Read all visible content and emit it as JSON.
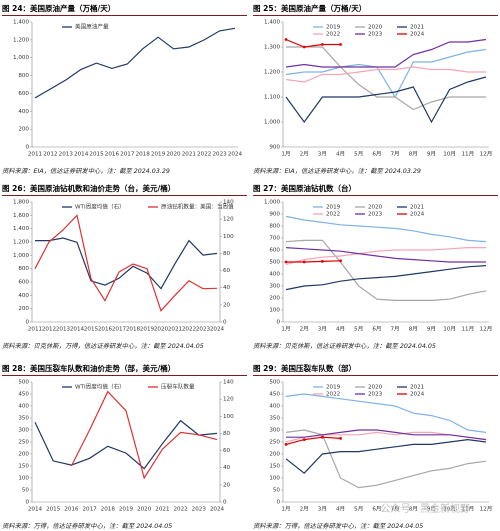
{
  "watermark": "公众号 · 黑金新视野",
  "chart_data": [
    {
      "type": "line",
      "title": "图 24：美国原油产量（万桶/天）",
      "source": "资料来源：EIA，信达证券研发中心，注：截至 2024.03.29",
      "categories": [
        "2011",
        "2012",
        "2013",
        "2014",
        "2015",
        "2016",
        "2017",
        "2018",
        "2019",
        "2020",
        "2021",
        "2022",
        "2023",
        "2024"
      ],
      "ylim": [
        0,
        1400
      ],
      "yticks": [
        0,
        200,
        400,
        600,
        800,
        {
          "value": 1000,
          "label": "1,000"
        },
        {
          "value": 1200,
          "label": "1,200"
        },
        {
          "value": 1400,
          "label": "1,400"
        }
      ],
      "series": [
        {
          "name": "美国原油产量",
          "color": "#1f3864",
          "values": [
            550,
            650,
            750,
            870,
            940,
            880,
            930,
            1100,
            1230,
            1100,
            1120,
            1200,
            1300,
            1330
          ]
        }
      ]
    },
    {
      "type": "line",
      "title": "图 25：美国原油产量（万桶/天）",
      "source": "资料来源：EIA，信达证券研发中心，注：截至 2024.03.29",
      "categories": [
        "1月",
        "2月",
        "3月",
        "4月",
        "5月",
        "6月",
        "7月",
        "8月",
        "9月",
        "10月",
        "11月",
        "12月"
      ],
      "ylim": [
        900,
        1400
      ],
      "yticks": [
        900,
        {
          "value": 1000,
          "label": "1,000"
        },
        {
          "value": 1100,
          "label": "1,100"
        },
        {
          "value": 1200,
          "label": "1,200"
        },
        {
          "value": 1300,
          "label": "1,300"
        },
        {
          "value": 1400,
          "label": "1,400"
        }
      ],
      "series": [
        {
          "name": "2019",
          "color": "#7fb2e5",
          "values": [
            1190,
            1200,
            1200,
            1220,
            1230,
            1220,
            1100,
            1240,
            1240,
            1260,
            1280,
            1290
          ]
        },
        {
          "name": "2020",
          "color": "#a6a6a6",
          "values": [
            1300,
            1300,
            1300,
            1220,
            1150,
            1100,
            1100,
            1050,
            1080,
            1100,
            1100,
            1100
          ]
        },
        {
          "name": "2021",
          "color": "#1f3864",
          "values": [
            1100,
            1000,
            1100,
            1100,
            1100,
            1110,
            1120,
            1140,
            1000,
            1130,
            1160,
            1180
          ]
        },
        {
          "name": "2022",
          "color": "#f4a6b4",
          "values": [
            1170,
            1160,
            1190,
            1190,
            1200,
            1210,
            1210,
            1220,
            1210,
            1210,
            1200,
            1200
          ]
        },
        {
          "name": "2023",
          "color": "#7030a0",
          "values": [
            1220,
            1230,
            1220,
            1220,
            1220,
            1220,
            1220,
            1270,
            1290,
            1320,
            1320,
            1330
          ]
        },
        {
          "name": "2024",
          "color": "#e00000",
          "markers": true,
          "values": [
            1330,
            1300,
            1310,
            1310,
            null,
            null,
            null,
            null,
            null,
            null,
            null,
            null
          ]
        }
      ]
    },
    {
      "type": "line",
      "title": "图 26：美国原油钻机数和油价走势（台，美元/桶）",
      "source": "资料来源：贝克休斯，万得，信达证券研发中心，注：截至 2024.04.05",
      "categories": [
        "2011",
        "2012",
        "2013",
        "2014",
        "2015",
        "2016",
        "2017",
        "2018",
        "2019",
        "2020",
        "2021",
        "2022",
        "2023",
        "2024"
      ],
      "ylim": [
        0,
        1800
      ],
      "yticks": [
        0,
        200,
        400,
        600,
        800,
        {
          "value": 1000,
          "label": "1,000"
        },
        {
          "value": 1200,
          "label": "1,200"
        },
        {
          "value": 1400,
          "label": "1,400"
        },
        {
          "value": 1600,
          "label": "1,600"
        },
        {
          "value": 1800,
          "label": "1,800"
        }
      ],
      "y2lim": [
        0,
        140
      ],
      "y2ticks": [
        0,
        20,
        40,
        60,
        80,
        100,
        120,
        140
      ],
      "series": [
        {
          "name": "WTI周度均值（右）",
          "color": "#1f3864",
          "axis": "y2",
          "values": [
            95,
            95,
            98,
            93,
            48,
            43,
            51,
            65,
            57,
            39,
            68,
            95,
            78,
            80
          ]
        },
        {
          "name": "原油钻机数量：美国：当周值",
          "color": "#e03030",
          "values": [
            800,
            1200,
            1380,
            1600,
            650,
            320,
            750,
            870,
            800,
            170,
            400,
            620,
            500,
            505
          ]
        }
      ]
    },
    {
      "type": "line",
      "title": "图 27：美国原油钻机数（台）",
      "source": "资料来源：贝克休斯，信达证券研发中心，注：截至 2024.04.05",
      "categories": [
        "1月",
        "2月",
        "3月",
        "4月",
        "5月",
        "6月",
        "7月",
        "8月",
        "9月",
        "10月",
        "11月",
        "12月"
      ],
      "ylim": [
        0,
        1000
      ],
      "yticks": [
        0,
        100,
        200,
        300,
        400,
        500,
        600,
        700,
        800,
        900,
        {
          "value": 1000,
          "label": "1,000"
        }
      ],
      "series": [
        {
          "name": "2019",
          "color": "#7fb2e5",
          "values": [
            880,
            850,
            830,
            810,
            800,
            790,
            780,
            760,
            730,
            710,
            680,
            670
          ]
        },
        {
          "name": "2020",
          "color": "#a6a6a6",
          "values": [
            670,
            680,
            680,
            500,
            300,
            190,
            180,
            180,
            180,
            190,
            230,
            260
          ]
        },
        {
          "name": "2021",
          "color": "#1f3864",
          "values": [
            270,
            300,
            310,
            340,
            360,
            370,
            380,
            400,
            420,
            440,
            460,
            470
          ]
        },
        {
          "name": "2022",
          "color": "#f4a6b4",
          "values": [
            480,
            520,
            540,
            550,
            570,
            590,
            600,
            600,
            600,
            610,
            620,
            620
          ]
        },
        {
          "name": "2023",
          "color": "#7030a0",
          "values": [
            620,
            610,
            600,
            590,
            570,
            550,
            530,
            520,
            510,
            500,
            500,
            500
          ]
        },
        {
          "name": "2024",
          "color": "#e00000",
          "markers": true,
          "values": [
            500,
            500,
            505,
            510,
            null,
            null,
            null,
            null,
            null,
            null,
            null,
            null
          ]
        }
      ]
    },
    {
      "type": "line",
      "title": "图 28：美国压裂车队数和油价走势（部，美元/桶）",
      "source": "资料来源：万得，信达证券研发中心，注：截至 2024.04.05",
      "categories": [
        "2014",
        "2015",
        "2016",
        "2017",
        "2018",
        "2019",
        "2020",
        "2021",
        "2022",
        "2023",
        "2024"
      ],
      "ylim": [
        0,
        500
      ],
      "yticks": [
        0,
        50,
        100,
        150,
        200,
        250,
        300,
        350,
        400,
        450,
        500
      ],
      "y2lim": [
        0,
        140
      ],
      "y2ticks": [
        0,
        20,
        40,
        60,
        80,
        100,
        120,
        140
      ],
      "series": [
        {
          "name": "WTI周度均值（右）",
          "color": "#1f3864",
          "axis": "y2",
          "values": [
            93,
            48,
            43,
            51,
            65,
            57,
            39,
            68,
            95,
            78,
            80
          ]
        },
        {
          "name": "压裂车队数量",
          "color": "#e03030",
          "values": [
            null,
            null,
            150,
            300,
            460,
            380,
            100,
            220,
            290,
            280,
            260
          ]
        }
      ]
    },
    {
      "type": "line",
      "title": "图 29：美国压裂车队数（部）",
      "source": "资料来源：万得，信达证券研发中心，注：截至 2024.04.05",
      "categories": [
        "1月",
        "2月",
        "3月",
        "4月",
        "5月",
        "6月",
        "7月",
        "8月",
        "9月",
        "10月",
        "11月",
        "12月"
      ],
      "ylim": [
        0,
        500
      ],
      "yticks": [
        0,
        50,
        100,
        150,
        200,
        250,
        300,
        350,
        400,
        450,
        500
      ],
      "series": [
        {
          "name": "2019",
          "color": "#7fb2e5",
          "values": [
            440,
            450,
            440,
            430,
            420,
            410,
            400,
            370,
            360,
            340,
            300,
            290
          ]
        },
        {
          "name": "2020",
          "color": "#a6a6a6",
          "values": [
            290,
            300,
            280,
            100,
            60,
            70,
            90,
            110,
            130,
            140,
            160,
            170
          ]
        },
        {
          "name": "2021",
          "color": "#1f3864",
          "values": [
            180,
            120,
            200,
            210,
            210,
            220,
            230,
            240,
            240,
            250,
            260,
            250
          ]
        },
        {
          "name": "2022",
          "color": "#f4a6b4",
          "values": [
            250,
            270,
            280,
            280,
            280,
            290,
            280,
            290,
            290,
            280,
            270,
            260
          ]
        },
        {
          "name": "2023",
          "color": "#7030a0",
          "values": [
            270,
            270,
            280,
            290,
            300,
            300,
            290,
            280,
            280,
            280,
            270,
            260
          ]
        },
        {
          "name": "2024",
          "color": "#e00000",
          "markers": true,
          "values": [
            240,
            260,
            270,
            265,
            null,
            null,
            null,
            null,
            null,
            null,
            null,
            null
          ]
        }
      ]
    }
  ]
}
